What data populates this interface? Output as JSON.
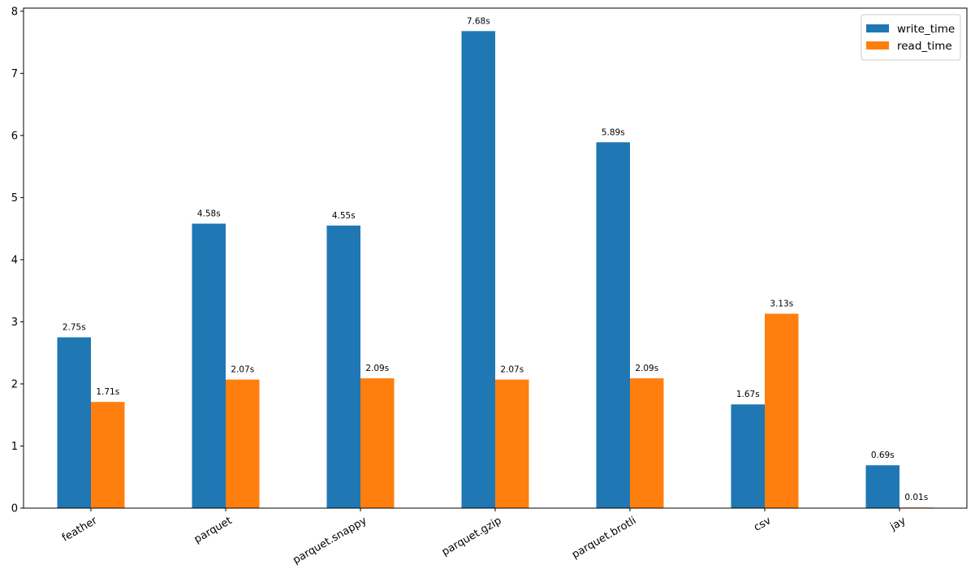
{
  "chart_data": {
    "type": "bar",
    "categories": [
      "feather",
      "parquet",
      "parquet.snappy",
      "parquet.gzip",
      "parquet.brotli",
      "csv",
      "jay"
    ],
    "series": [
      {
        "name": "write_time",
        "color": "#1f77b4",
        "values": [
          2.75,
          4.58,
          4.55,
          7.68,
          5.89,
          1.67,
          0.69
        ],
        "labels": [
          "2.75s",
          "4.58s",
          "4.55s",
          "7.68s",
          "5.89s",
          "1.67s",
          "0.69s"
        ]
      },
      {
        "name": "read_time",
        "color": "#ff7f0e",
        "values": [
          1.71,
          2.07,
          2.09,
          2.07,
          2.09,
          3.13,
          0.01
        ],
        "labels": [
          "1.71s",
          "2.07s",
          "2.09s",
          "2.07s",
          "2.09s",
          "3.13s",
          "0.01s"
        ]
      }
    ],
    "title": "",
    "xlabel": "",
    "ylabel": "",
    "ylim": [
      0,
      8.05
    ],
    "yticks": [
      0,
      1,
      2,
      3,
      4,
      5,
      6,
      7,
      8
    ],
    "ytick_labels": [
      "0",
      "1",
      "2",
      "3",
      "4",
      "5",
      "6",
      "7",
      "8"
    ],
    "grid": false,
    "legend_position": "top-right",
    "x_tick_rotation_deg": 30
  }
}
